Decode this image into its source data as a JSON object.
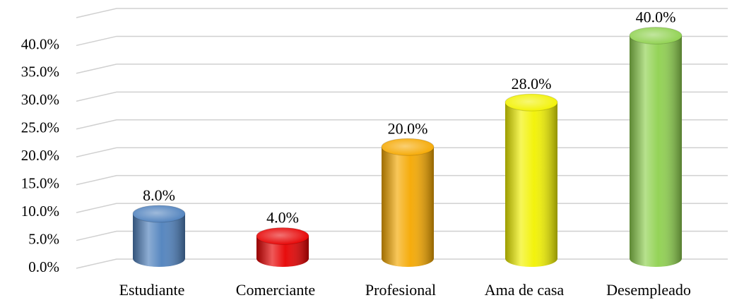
{
  "chart_data": {
    "type": "bar",
    "categories": [
      "Estudiante",
      "Comerciante",
      "Profesional",
      "Ama de casa",
      "Desempleado"
    ],
    "values": [
      8,
      4,
      20,
      28,
      40
    ],
    "value_labels": [
      "8.0%",
      "4.0%",
      "20.0%",
      "28.0%",
      "40.0%"
    ],
    "colors": [
      "#4f81bd",
      "#e60000",
      "#f5a800",
      "#f2f200",
      "#8fd14f"
    ],
    "ylim": [
      0,
      45
    ],
    "yticks": [
      {
        "value": 0,
        "label": "0.0%"
      },
      {
        "value": 5,
        "label": "5.0%"
      },
      {
        "value": 10,
        "label": "10.0%"
      },
      {
        "value": 15,
        "label": "15.0%"
      },
      {
        "value": 20,
        "label": "20.0%"
      },
      {
        "value": 25,
        "label": "25.0%"
      },
      {
        "value": 30,
        "label": "30.0%"
      },
      {
        "value": 35,
        "label": "35.0%"
      },
      {
        "value": 40,
        "label": "40.0%"
      }
    ],
    "grid": true
  }
}
